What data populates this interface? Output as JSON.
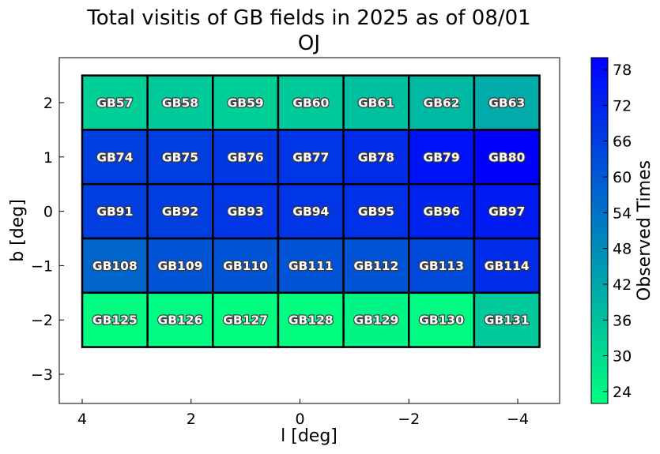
{
  "chart_data": {
    "type": "heatmap",
    "title": "Total visitis of GB fields in 2025 as of 08/01",
    "subtitle": "OJ",
    "xlabel": "l [deg]",
    "ylabel": "b [deg]",
    "xlim": [
      4.4,
      -4.8
    ],
    "ylim": [
      -3.5,
      2.8
    ],
    "x_ticks": [
      4,
      2,
      0,
      -2,
      -4
    ],
    "x_tick_labels": [
      "4",
      "2",
      "0",
      "−2",
      "−4"
    ],
    "y_ticks": [
      2,
      1,
      0,
      -1,
      -2,
      -3
    ],
    "y_tick_labels": [
      "2",
      "1",
      "0",
      "−1",
      "−2",
      "−3"
    ],
    "grid": false,
    "colorbar": {
      "label": "Observed Times",
      "min": 22,
      "max": 80,
      "ticks": [
        24,
        30,
        36,
        42,
        48,
        54,
        60,
        66,
        72,
        78
      ],
      "colormap": [
        "#00ff80",
        "#0000ff"
      ]
    },
    "columns_l": [
      3.4,
      2.2,
      1.0,
      -0.2,
      -1.4,
      -2.6,
      -3.8
    ],
    "rows_b": [
      2.0,
      1.0,
      0.0,
      -1.0,
      -2.0
    ],
    "cell_width_deg": 1.2,
    "cell_height_deg": 1.0,
    "cells": [
      [
        {
          "label": "GB57",
          "value": 33
        },
        {
          "label": "GB58",
          "value": 34
        },
        {
          "label": "GB59",
          "value": 33
        },
        {
          "label": "GB60",
          "value": 34
        },
        {
          "label": "GB61",
          "value": 36
        },
        {
          "label": "GB62",
          "value": 38
        },
        {
          "label": "GB63",
          "value": 41
        }
      ],
      [
        {
          "label": "GB74",
          "value": 66
        },
        {
          "label": "GB75",
          "value": 66
        },
        {
          "label": "GB76",
          "value": 67
        },
        {
          "label": "GB77",
          "value": 68
        },
        {
          "label": "GB78",
          "value": 70
        },
        {
          "label": "GB79",
          "value": 76
        },
        {
          "label": "GB80",
          "value": 80
        }
      ],
      [
        {
          "label": "GB91",
          "value": 66
        },
        {
          "label": "GB92",
          "value": 66
        },
        {
          "label": "GB93",
          "value": 68
        },
        {
          "label": "GB94",
          "value": 68
        },
        {
          "label": "GB95",
          "value": 69
        },
        {
          "label": "GB96",
          "value": 72
        },
        {
          "label": "GB97",
          "value": 74
        }
      ],
      [
        {
          "label": "GB108",
          "value": 57
        },
        {
          "label": "GB109",
          "value": 61
        },
        {
          "label": "GB110",
          "value": 61
        },
        {
          "label": "GB111",
          "value": 61
        },
        {
          "label": "GB112",
          "value": 61
        },
        {
          "label": "GB113",
          "value": 63
        },
        {
          "label": "GB114",
          "value": 70
        }
      ],
      [
        {
          "label": "GB125",
          "value": 22
        },
        {
          "label": "GB126",
          "value": 23
        },
        {
          "label": "GB127",
          "value": 22
        },
        {
          "label": "GB128",
          "value": 22
        },
        {
          "label": "GB129",
          "value": 24
        },
        {
          "label": "GB130",
          "value": 23
        },
        {
          "label": "GB131",
          "value": 34
        }
      ]
    ]
  }
}
